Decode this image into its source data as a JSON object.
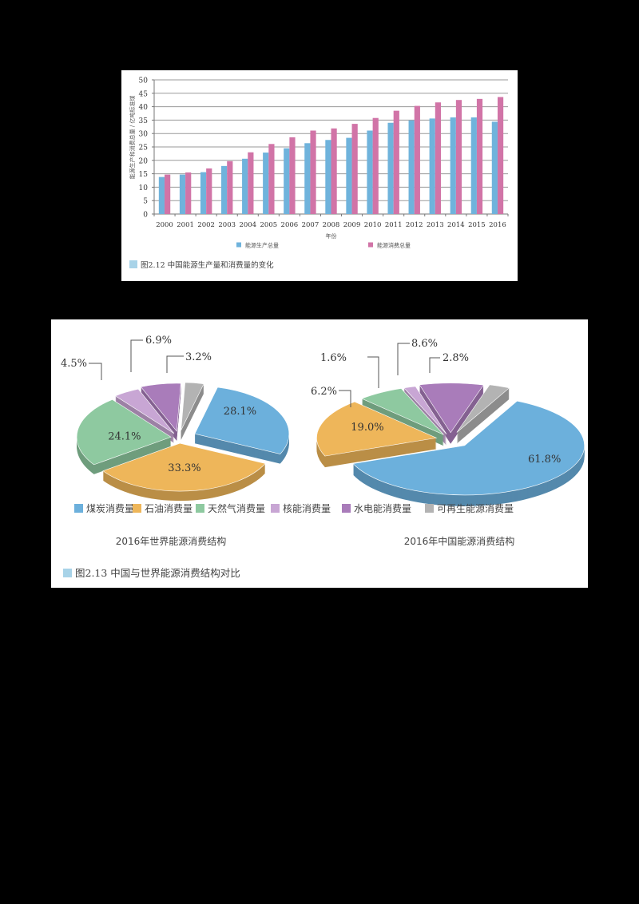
{
  "figure_212": {
    "caption": "图2.12  中国能源生产量和消费量的变化",
    "caption_color": "#a8d3e8"
  },
  "figure_213": {
    "caption": "图2.13   中国与世界能源消费结构对比",
    "caption_color": "#a8d3e8"
  },
  "chart_data": [
    {
      "type": "bar",
      "title": "",
      "xlabel": "年份",
      "ylabel": "能源生产和消费总量 / 亿吨标准煤",
      "ylim": [
        0,
        50
      ],
      "yticks": [
        0,
        5,
        10,
        15,
        20,
        25,
        30,
        35,
        40,
        45,
        50
      ],
      "grid": true,
      "legend_position": "bottom",
      "categories": [
        "2000",
        "2001",
        "2002",
        "2003",
        "2004",
        "2005",
        "2006",
        "2007",
        "2008",
        "2009",
        "2010",
        "2011",
        "2012",
        "2013",
        "2014",
        "2015",
        "2016"
      ],
      "series": [
        {
          "name": "能源生产总量",
          "color": "#6fb3dc",
          "values": [
            13.8,
            14.7,
            15.6,
            17.9,
            20.6,
            22.9,
            24.5,
            26.4,
            27.6,
            28.4,
            31.1,
            34.0,
            34.9,
            35.6,
            36.0,
            36.0,
            34.4
          ]
        },
        {
          "name": "能源消费总量",
          "color": "#d174a7",
          "values": [
            14.7,
            15.5,
            17.0,
            19.7,
            23.0,
            26.1,
            28.6,
            31.1,
            31.9,
            33.6,
            35.8,
            38.5,
            40.3,
            41.6,
            42.5,
            42.9,
            43.6
          ]
        }
      ]
    },
    {
      "type": "pie",
      "title": "2016年世界能源消费结构",
      "categories": [
        "煤炭消费量",
        "石油消费量",
        "天然气消费量",
        "核能消费量",
        "水电能消费量",
        "可再生能源消费量"
      ],
      "values": [
        28.1,
        33.3,
        24.1,
        4.5,
        6.9,
        3.2
      ],
      "labels": [
        "28.1%",
        "33.3%",
        "24.1%",
        "4.5%",
        "6.9%",
        "3.2%"
      ],
      "colors": [
        "#6cb0dc",
        "#eeb65a",
        "#8ec9a0",
        "#c8a6d4",
        "#a97cba",
        "#b3b3b3"
      ]
    },
    {
      "type": "pie",
      "title": "2016年中国能源消费结构",
      "categories": [
        "煤炭消费量",
        "石油消费量",
        "天然气消费量",
        "核能消费量",
        "水电能消费量",
        "可再生能源消费量"
      ],
      "values": [
        61.8,
        19.0,
        6.2,
        1.6,
        8.6,
        2.8
      ],
      "labels": [
        "61.8%",
        "19.0%",
        "6.2%",
        "1.6%",
        "8.6%",
        "2.8%"
      ],
      "colors": [
        "#6cb0dc",
        "#eeb65a",
        "#8ec9a0",
        "#c8a6d4",
        "#a97cba",
        "#b3b3b3"
      ]
    }
  ],
  "pie_legend": [
    {
      "label": "煤炭消费量",
      "color": "#6cb0dc"
    },
    {
      "label": "石油消费量",
      "color": "#eeb65a"
    },
    {
      "label": "天然气消费量",
      "color": "#8ec9a0"
    },
    {
      "label": "核能消费量",
      "color": "#c8a6d4"
    },
    {
      "label": "水电能消费量",
      "color": "#a97cba"
    },
    {
      "label": "可再生能源消费量",
      "color": "#b3b3b3"
    }
  ]
}
